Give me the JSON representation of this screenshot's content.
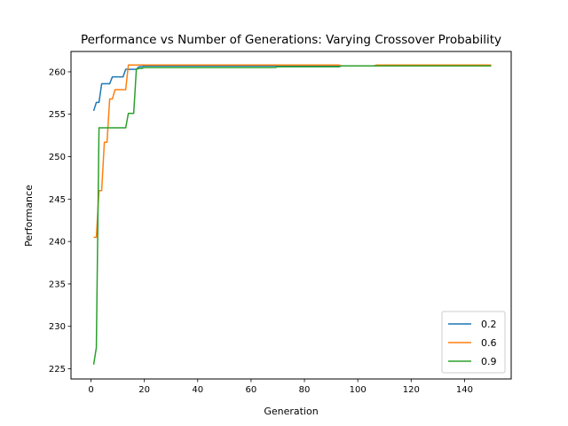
{
  "chart_data": {
    "type": "line",
    "title": "Performance vs Number of Generations: Varying Crossover Probability",
    "xlabel": "Generation",
    "ylabel": "Performance",
    "xlim": [
      -7.5,
      157.5
    ],
    "ylim": [
      223.8,
      262.4
    ],
    "xticks": [
      0,
      20,
      40,
      60,
      80,
      100,
      120,
      140
    ],
    "yticks": [
      225,
      230,
      235,
      240,
      245,
      250,
      255,
      260
    ],
    "grid": false,
    "legend_position": "lower right",
    "series": [
      {
        "name": "0.2",
        "color": "#1f77b4",
        "points": [
          [
            1,
            255.4
          ],
          [
            2,
            256.4
          ],
          [
            3,
            256.4
          ],
          [
            4,
            258.6
          ],
          [
            7,
            258.6
          ],
          [
            8,
            259.4
          ],
          [
            12,
            259.4
          ],
          [
            13,
            260.3
          ],
          [
            17,
            260.3
          ],
          [
            18,
            260.6
          ],
          [
            19,
            260.6
          ],
          [
            20,
            260.7
          ],
          [
            150,
            260.7
          ]
        ]
      },
      {
        "name": "0.6",
        "color": "#ff7f0e",
        "points": [
          [
            1,
            240.5
          ],
          [
            2,
            240.5
          ],
          [
            3,
            246.0
          ],
          [
            4,
            246.0
          ],
          [
            5,
            251.7
          ],
          [
            6,
            251.7
          ],
          [
            7,
            256.8
          ],
          [
            8,
            256.8
          ],
          [
            9,
            257.9
          ],
          [
            13,
            257.9
          ],
          [
            14,
            260.8
          ],
          [
            93,
            260.8
          ],
          [
            94,
            260.7
          ],
          [
            106,
            260.7
          ],
          [
            107,
            260.8
          ],
          [
            150,
            260.8
          ]
        ]
      },
      {
        "name": "0.9",
        "color": "#2ca02c",
        "points": [
          [
            1,
            225.5
          ],
          [
            2,
            227.5
          ],
          [
            3,
            253.4
          ],
          [
            13,
            253.4
          ],
          [
            14,
            255.1
          ],
          [
            16,
            255.1
          ],
          [
            17,
            260.3
          ],
          [
            18,
            260.4
          ],
          [
            19,
            260.4
          ],
          [
            20,
            260.5
          ],
          [
            69,
            260.5
          ],
          [
            70,
            260.6
          ],
          [
            93,
            260.6
          ],
          [
            94,
            260.7
          ],
          [
            150,
            260.7
          ]
        ]
      }
    ]
  }
}
